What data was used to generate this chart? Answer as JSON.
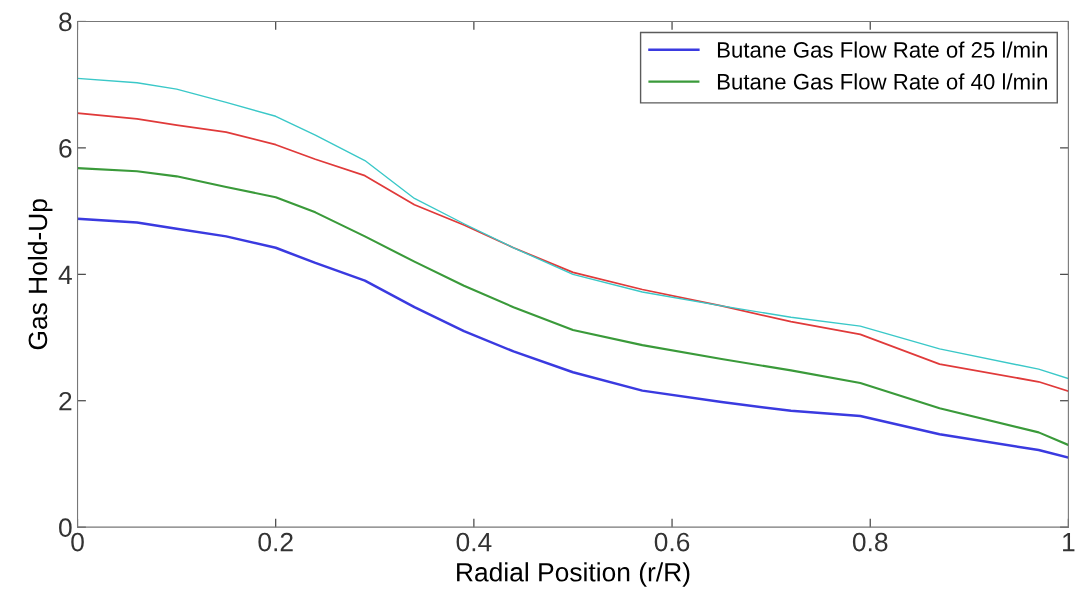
{
  "chart_data": {
    "type": "line",
    "xlabel": "Radial Position (r/R)",
    "ylabel": "Gas Hold-Up",
    "x": [
      0,
      0.06,
      0.1,
      0.15,
      0.2,
      0.24,
      0.29,
      0.34,
      0.39,
      0.44,
      0.5,
      0.57,
      0.65,
      0.72,
      0.79,
      0.87,
      0.97,
      1.0
    ],
    "series": [
      {
        "name": "Butane Gas Flow Rate of 25 l/min",
        "color": "#3a3ae0",
        "values": [
          4.88,
          4.82,
          4.72,
          4.6,
          4.42,
          4.18,
          3.9,
          3.48,
          3.1,
          2.78,
          2.45,
          2.16,
          1.98,
          1.84,
          1.76,
          1.47,
          1.22,
          1.1
        ]
      },
      {
        "name": "Butane Gas Flow Rate of 40 l/min",
        "color": "#3a9a3a",
        "values": [
          5.68,
          5.63,
          5.55,
          5.38,
          5.22,
          4.98,
          4.6,
          4.2,
          3.82,
          3.48,
          3.12,
          2.88,
          2.66,
          2.48,
          2.28,
          1.88,
          1.5,
          1.3
        ]
      },
      {
        "color": "#e03a3a",
        "values": [
          6.55,
          6.46,
          6.36,
          6.25,
          6.05,
          5.82,
          5.56,
          5.1,
          4.78,
          4.42,
          4.03,
          3.76,
          3.5,
          3.25,
          3.05,
          2.58,
          2.3,
          2.15
        ]
      },
      {
        "color": "#3ac8c8",
        "values": [
          7.1,
          7.03,
          6.93,
          6.72,
          6.5,
          6.2,
          5.8,
          5.2,
          4.8,
          4.42,
          4.0,
          3.72,
          3.5,
          3.32,
          3.18,
          2.82,
          2.5,
          2.35
        ]
      }
    ],
    "xlim": [
      0,
      1
    ],
    "xticks": [
      0,
      0.2,
      0.4,
      0.6,
      0.8,
      1
    ],
    "ylim": [
      0,
      8
    ],
    "yticks": [
      0,
      2,
      4,
      6,
      8
    ],
    "grid": false,
    "legend": "top right",
    "marker": "none",
    "line_style": "solid"
  }
}
